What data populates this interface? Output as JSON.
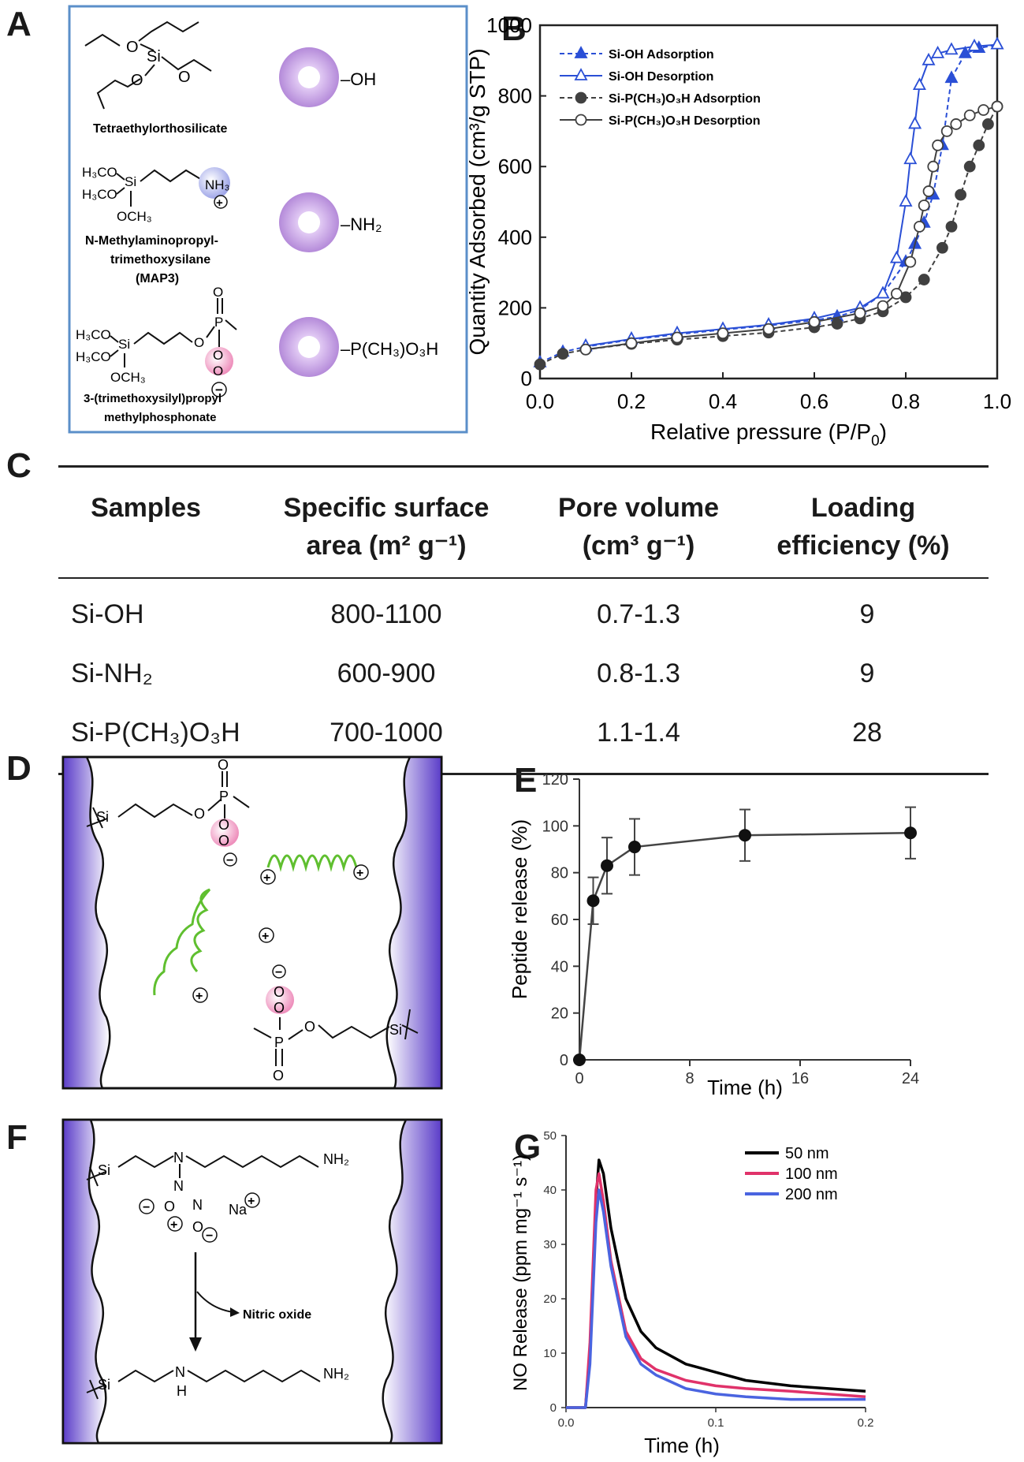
{
  "panels": {
    "a": "A",
    "b": "B",
    "c": "C",
    "d": "D",
    "e": "E",
    "f": "F",
    "g": "G"
  },
  "panel_a": {
    "teos_name": "Tetraethylorthosilicate",
    "teos_atoms": [
      "O",
      "Si",
      "O",
      "O"
    ],
    "map3_name_1": "N-Methylaminopropyl-",
    "map3_name_2": "trimethoxysilane",
    "map3_name_3": "(MAP3)",
    "map3_atoms": [
      "H₃CO",
      "Si",
      "H₃CO",
      "OCH₃",
      "NH₃",
      "+"
    ],
    "phos_name_1": "3-(trimethoxysilyl)propyl",
    "phos_name_2": "methylphosphonate",
    "phos_atoms": [
      "H₃CO",
      "Si",
      "H₃CO",
      "OCH₃",
      "O",
      "P",
      "O",
      "O",
      "O",
      "−"
    ],
    "np_labels": [
      "–OH",
      "–NH₂",
      "–P(CH₃)O₃H"
    ],
    "colors": {
      "frame": "#5b8fc9",
      "nanoparticle": "#c79ee6",
      "ammonium": "#9fa6e8",
      "phosphonate": "#f0a8c8"
    }
  },
  "chart_b": {
    "type": "line",
    "xlabel": "Relative pressure (P/P",
    "xlabel_sub": "0",
    "xlabel_end": ")",
    "ylabel": "Quantity Adsorbed (cm³/g STP)",
    "xlim": [
      0.0,
      1.0
    ],
    "ylim": [
      0,
      1000
    ],
    "xticks": [
      "0.0",
      "0.2",
      "0.4",
      "0.6",
      "0.8",
      "1.0"
    ],
    "yticks": [
      "0",
      "200",
      "400",
      "600",
      "800",
      "1000"
    ],
    "legend": [
      "Si-OH Adsorption",
      "Si-OH Desorption",
      "Si-P(CH₃)O₃H Adsorption",
      "Si-P(CH₃)O₃H Desorption"
    ],
    "series": [
      {
        "name": "Si-OH Adsorption",
        "color": "#2a4fd6",
        "x": [
          0.0,
          0.05,
          0.1,
          0.2,
          0.3,
          0.4,
          0.5,
          0.6,
          0.65,
          0.7,
          0.75,
          0.8,
          0.82,
          0.84,
          0.86,
          0.88,
          0.9,
          0.93,
          0.96,
          1.0
        ],
        "y": [
          45,
          75,
          90,
          110,
          125,
          138,
          150,
          165,
          175,
          195,
          240,
          330,
          380,
          440,
          520,
          660,
          850,
          920,
          935,
          945
        ]
      },
      {
        "name": "Si-OH Desorption",
        "color": "#2a4fd6",
        "x": [
          1.0,
          0.95,
          0.9,
          0.87,
          0.85,
          0.83,
          0.82,
          0.81,
          0.8,
          0.78,
          0.75,
          0.7,
          0.6,
          0.5,
          0.4,
          0.3,
          0.2,
          0.1
        ],
        "y": [
          945,
          940,
          930,
          920,
          900,
          830,
          720,
          620,
          500,
          340,
          240,
          200,
          170,
          152,
          140,
          128,
          112,
          92
        ]
      },
      {
        "name": "Si-P(CH₃)O₃H Adsorption",
        "color": "#404040",
        "x": [
          0.0,
          0.05,
          0.1,
          0.2,
          0.3,
          0.4,
          0.5,
          0.6,
          0.65,
          0.7,
          0.75,
          0.8,
          0.84,
          0.88,
          0.9,
          0.92,
          0.94,
          0.96,
          0.98,
          1.0
        ],
        "y": [
          40,
          70,
          82,
          98,
          110,
          120,
          130,
          145,
          155,
          170,
          190,
          230,
          280,
          370,
          430,
          520,
          600,
          660,
          720,
          770
        ]
      },
      {
        "name": "Si-P(CH₃)O₃H Desorption",
        "color": "#404040",
        "x": [
          1.0,
          0.97,
          0.94,
          0.91,
          0.89,
          0.87,
          0.86,
          0.85,
          0.84,
          0.83,
          0.81,
          0.78,
          0.75,
          0.7,
          0.6,
          0.5,
          0.4,
          0.3,
          0.2,
          0.1
        ],
        "y": [
          770,
          760,
          745,
          720,
          700,
          660,
          600,
          530,
          490,
          430,
          330,
          240,
          205,
          185,
          160,
          140,
          128,
          116,
          100,
          82
        ]
      }
    ]
  },
  "table_c": {
    "type": "table",
    "headers": [
      {
        "line1": "Samples",
        "line2": ""
      },
      {
        "line1": "Specific surface",
        "line2": "area (m² g⁻¹)"
      },
      {
        "line1": "Pore volume",
        "line2": "(cm³ g⁻¹)"
      },
      {
        "line1": "Loading",
        "line2": "efficiency (%)"
      }
    ],
    "rows": [
      [
        "Si-OH",
        "800-1100",
        "0.7-1.3",
        "9"
      ],
      [
        "Si-NH₂",
        "600-900",
        "0.8-1.3",
        "9"
      ],
      [
        "Si-P(CH₃)O₃H",
        "700-1000",
        "1.1-1.4",
        "28"
      ]
    ]
  },
  "panel_d": {
    "atoms_top": [
      "Si",
      "O",
      "P",
      "O",
      "O",
      "O",
      "−"
    ],
    "atoms_bottom": [
      "O",
      "O",
      "−",
      "P",
      "O",
      "O",
      "Si"
    ],
    "charges": [
      "+",
      "+",
      "+",
      "+"
    ],
    "colors": {
      "wall": "#6a4fd0",
      "helix": "#5fbf2f",
      "phosphonate": "#f0a8c8"
    }
  },
  "chart_e": {
    "type": "line",
    "xlabel": "Time (h)",
    "ylabel": "Peptide release (%)",
    "xlim": [
      0,
      24
    ],
    "ylim": [
      0,
      120
    ],
    "xticks": [
      "0",
      "8",
      "16",
      "24"
    ],
    "yticks": [
      "0",
      "20",
      "40",
      "60",
      "80",
      "100",
      "120"
    ],
    "series": [
      {
        "x": [
          0,
          1,
          2,
          4,
          12,
          24
        ],
        "y": [
          0,
          68,
          83,
          91,
          96,
          97
        ],
        "err": [
          0,
          10,
          12,
          12,
          11,
          11
        ]
      }
    ]
  },
  "panel_f": {
    "atoms": [
      "Si",
      "N",
      "NH₂",
      "N",
      "N",
      "O",
      "O",
      "Na",
      "Si",
      "N",
      "H",
      "NH₂"
    ],
    "charges": [
      "−",
      "+",
      "−",
      "+"
    ],
    "arrow_label": "Nitric oxide"
  },
  "chart_g": {
    "type": "line",
    "xlabel": "Time (h)",
    "ylabel": "NO Release (ppm mg⁻¹ s⁻¹)",
    "xlim": [
      0,
      0.2
    ],
    "ylim": [
      0,
      50
    ],
    "xticks": [
      "0.0",
      "0.1",
      "0.2"
    ],
    "yticks": [
      "0",
      "10",
      "20",
      "30",
      "40",
      "50"
    ],
    "legend": [
      "50 nm",
      "100 nm",
      "200 nm"
    ],
    "series": [
      {
        "name": "50 nm",
        "color": "#000000",
        "x": [
          0,
          0.013,
          0.016,
          0.02,
          0.022,
          0.025,
          0.03,
          0.04,
          0.05,
          0.06,
          0.08,
          0.1,
          0.12,
          0.15,
          0.2
        ],
        "y": [
          0,
          0,
          10,
          38,
          45.5,
          43,
          33,
          20,
          14,
          11,
          8,
          6.5,
          5,
          4,
          3
        ]
      },
      {
        "name": "100 nm",
        "color": "#e0326a",
        "x": [
          0,
          0.013,
          0.016,
          0.02,
          0.022,
          0.025,
          0.03,
          0.04,
          0.05,
          0.06,
          0.08,
          0.1,
          0.12,
          0.15,
          0.2
        ],
        "y": [
          0,
          0,
          12,
          40,
          43,
          38,
          27,
          14,
          9,
          7,
          5,
          4,
          3.5,
          3,
          2
        ]
      },
      {
        "name": "200 nm",
        "color": "#4a64e0",
        "x": [
          0,
          0.013,
          0.016,
          0.02,
          0.022,
          0.025,
          0.03,
          0.04,
          0.05,
          0.06,
          0.08,
          0.1,
          0.12,
          0.15,
          0.2
        ],
        "y": [
          0,
          0,
          8,
          34,
          40,
          36,
          26,
          13,
          8,
          6,
          3.5,
          2.5,
          2,
          1.5,
          1.5
        ]
      }
    ]
  }
}
